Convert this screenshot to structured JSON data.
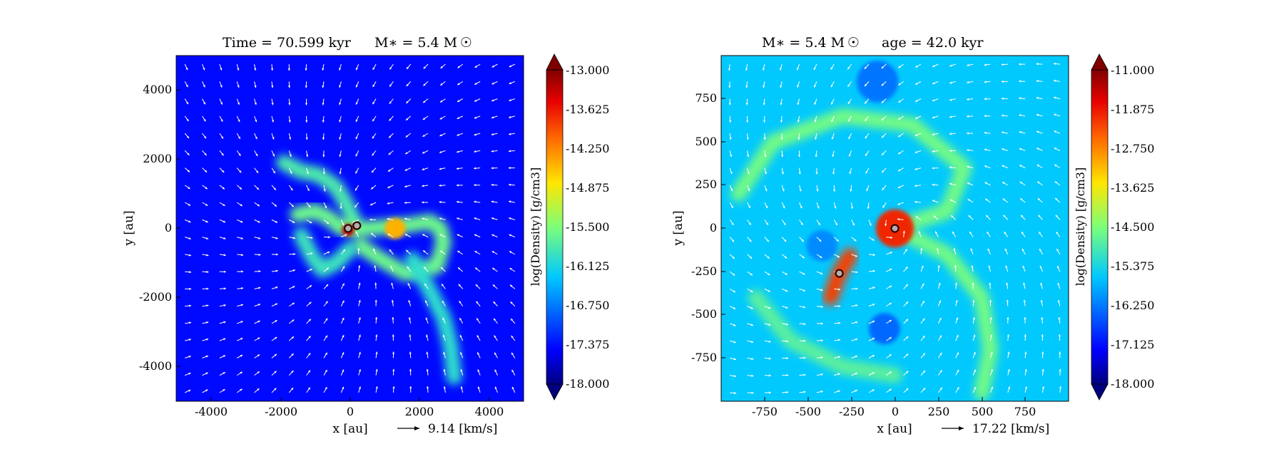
{
  "figure": {
    "panels": [
      {
        "title_left": "Time = 70.599 kyr",
        "title_right": "M$_*$ = 5.4 M$_\\odot$",
        "xlabel": "x [au]",
        "ylabel": "y [au]",
        "quiver_key": "9.14 [km/s]",
        "colorbar_label": "log(Density) [g/cm3]",
        "colorbar_ticks": [
          "-13.000",
          "-13.625",
          "-14.250",
          "-14.875",
          "-15.500",
          "-16.125",
          "-16.750",
          "-17.375",
          "-18.000"
        ],
        "xticks": [
          "-4000",
          "-2000",
          "0",
          "2000",
          "4000"
        ],
        "yticks": [
          "4000",
          "2000",
          "0",
          "-2000",
          "-4000"
        ]
      },
      {
        "title_left": "M$_*$ = 5.4 M$_\\odot$",
        "title_right": "age = 42.0 kyr",
        "xlabel": "x [au]",
        "ylabel": "y [au]",
        "quiver_key": "17.22 [km/s]",
        "colorbar_label": "log(Density) [g/cm3]",
        "colorbar_ticks": [
          "-11.000",
          "-11.875",
          "-12.750",
          "-13.625",
          "-14.500",
          "-15.375",
          "-16.250",
          "-17.125",
          "-18.000"
        ],
        "xticks": [
          "-750",
          "-500",
          "-250",
          "0",
          "250",
          "500",
          "750"
        ],
        "yticks": [
          "750",
          "500",
          "250",
          "0",
          "-250",
          "-500",
          "-750"
        ]
      }
    ]
  },
  "chart_data": [
    {
      "type": "heatmap",
      "title": "Time = 70.599 kyr    M* = 5.4 M☉",
      "xlabel": "x [au]",
      "ylabel": "y [au]",
      "xlim": [
        -5000,
        5000
      ],
      "ylim": [
        -5000,
        5000
      ],
      "xticks": [
        -4000,
        -2000,
        0,
        2000,
        4000
      ],
      "yticks": [
        -4000,
        -2000,
        0,
        2000,
        4000
      ],
      "colorbar": {
        "label": "log(Density) [g/cm3]",
        "range": [
          -18.0,
          -13.0
        ],
        "colormap": "jet",
        "extend": "both"
      },
      "background_level": -17.4,
      "features": [
        {
          "kind": "filament",
          "level": -15.8,
          "points": [
            [
              -1900,
              1900
            ],
            [
              -1400,
              1650
            ],
            [
              -900,
              1550
            ],
            [
              -400,
              1200
            ],
            [
              -100,
              700
            ],
            [
              100,
              250
            ]
          ]
        },
        {
          "kind": "filament",
          "level": -15.6,
          "points": [
            [
              -1500,
              400
            ],
            [
              -1000,
              500
            ],
            [
              -600,
              300
            ],
            [
              -300,
              50
            ],
            [
              0,
              0
            ]
          ]
        },
        {
          "kind": "filament",
          "level": -15.6,
          "points": [
            [
              0,
              0
            ],
            [
              500,
              0
            ],
            [
              1100,
              50
            ],
            [
              1700,
              100
            ],
            [
              2300,
              200
            ],
            [
              2600,
              0
            ],
            [
              2700,
              -400
            ],
            [
              2500,
              -1100
            ],
            [
              1600,
              -1300
            ],
            [
              900,
              -900
            ],
            [
              300,
              -500
            ]
          ]
        },
        {
          "kind": "filament",
          "level": -16.0,
          "points": [
            [
              1800,
              -900
            ],
            [
              2300,
              -1800
            ],
            [
              2700,
              -2600
            ],
            [
              2900,
              -3400
            ],
            [
              3000,
              -4300
            ]
          ]
        },
        {
          "kind": "filament",
          "level": -15.9,
          "points": [
            [
              -1400,
              -200
            ],
            [
              -1100,
              -800
            ],
            [
              -800,
              -1200
            ],
            [
              -400,
              -1000
            ],
            [
              0,
              -600
            ]
          ]
        },
        {
          "kind": "blob",
          "level": -14.5,
          "center": [
            1300,
            0
          ],
          "radius": 300
        },
        {
          "kind": "blob",
          "level": -13.3,
          "center": [
            -50,
            -50
          ],
          "radius": 180
        }
      ],
      "sinks": [
        [
          -50,
          0
        ],
        [
          200,
          80
        ]
      ],
      "quiver_key": {
        "speed": 9.14,
        "unit": "km/s"
      }
    },
    {
      "type": "heatmap",
      "title": "M* = 5.4 M☉    age = 42.0 kyr",
      "xlabel": "x [au]",
      "ylabel": "y [au]",
      "xlim": [
        -1000,
        1000
      ],
      "ylim": [
        -1000,
        1000
      ],
      "xticks": [
        -750,
        -500,
        -250,
        0,
        250,
        500,
        750
      ],
      "yticks": [
        -750,
        -500,
        -250,
        0,
        250,
        500,
        750
      ],
      "colorbar": {
        "label": "log(Density) [g/cm3]",
        "range": [
          -18.0,
          -11.0
        ],
        "colormap": "jet",
        "extend": "both"
      },
      "background_level": -15.6,
      "features": [
        {
          "kind": "filament",
          "level": -14.6,
          "points": [
            [
              -900,
              200
            ],
            [
              -700,
              500
            ],
            [
              -300,
              650
            ],
            [
              100,
              600
            ],
            [
              400,
              350
            ],
            [
              300,
              100
            ],
            [
              0,
              0
            ]
          ]
        },
        {
          "kind": "filament",
          "level": -14.6,
          "points": [
            [
              0,
              0
            ],
            [
              300,
              -150
            ],
            [
              500,
              -400
            ],
            [
              550,
              -700
            ],
            [
              500,
              -950
            ]
          ]
        },
        {
          "kind": "filament",
          "level": -14.8,
          "points": [
            [
              -800,
              -400
            ],
            [
              -600,
              -650
            ],
            [
              -300,
              -800
            ],
            [
              0,
              -850
            ]
          ]
        },
        {
          "kind": "blob",
          "level": -16.3,
          "center": [
            -100,
            850
          ],
          "radius": 120
        },
        {
          "kind": "blob",
          "level": -16.4,
          "center": [
            -60,
            -580
          ],
          "radius": 90
        },
        {
          "kind": "blob",
          "level": -16.1,
          "center": [
            -420,
            -100
          ],
          "radius": 90
        },
        {
          "kind": "blob",
          "level": -12.0,
          "center": [
            0,
            0
          ],
          "radius": 110
        },
        {
          "kind": "filament",
          "level": -12.2,
          "points": [
            [
              -370,
              -400
            ],
            [
              -320,
              -260
            ],
            [
              -260,
              -160
            ]
          ]
        }
      ],
      "sinks": [
        [
          0,
          0
        ],
        [
          -320,
          -260
        ]
      ],
      "quiver_key": {
        "speed": 17.22,
        "unit": "km/s"
      }
    }
  ]
}
